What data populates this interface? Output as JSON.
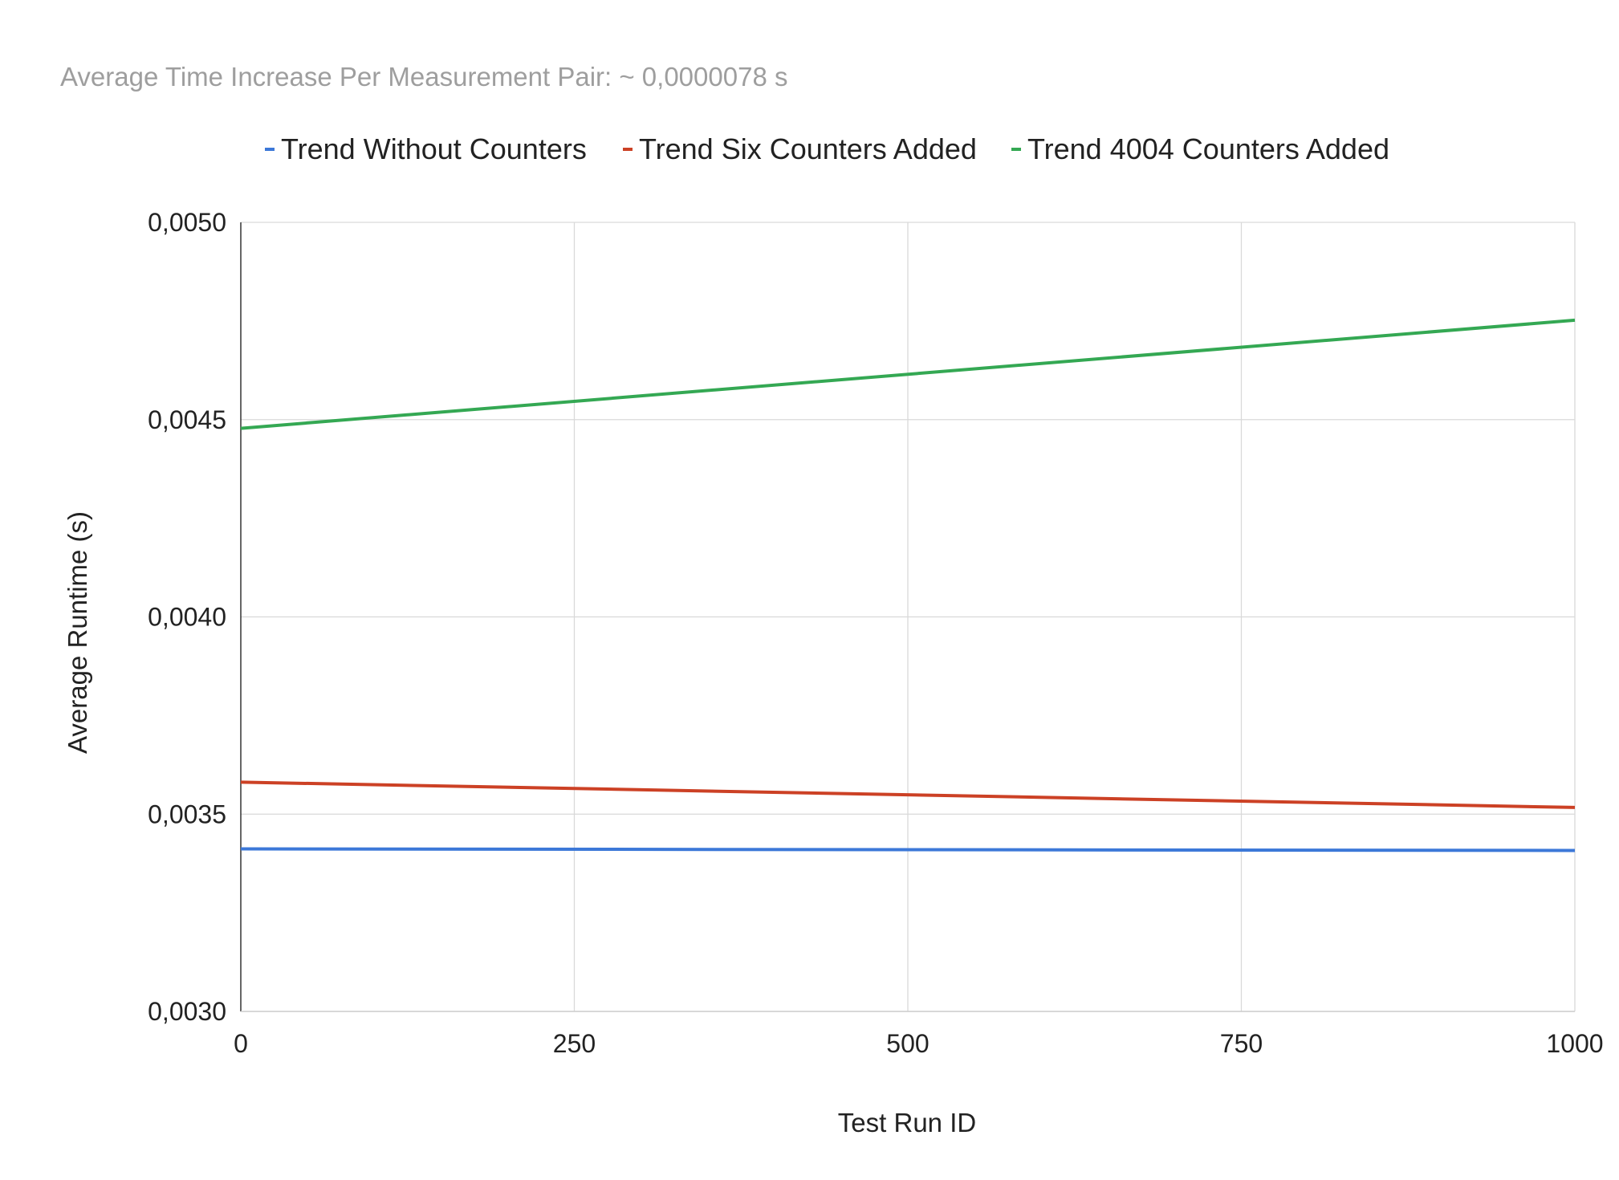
{
  "chart_data": {
    "type": "line",
    "title": "Average Time Increase Per Measurement Pair:  ~ 0,0000078 s",
    "xlabel": "Test Run ID",
    "ylabel": "Average Runtime (s)",
    "xlim": [
      0,
      1000
    ],
    "ylim": [
      0.003,
      0.005
    ],
    "x_ticks": [
      0,
      250,
      500,
      750,
      1000
    ],
    "x_tick_labels": [
      "0",
      "250",
      "500",
      "750",
      "1000"
    ],
    "y_ticks": [
      0.003,
      0.0035,
      0.004,
      0.0045,
      0.005
    ],
    "y_tick_labels": [
      "0,0030",
      "0,0035",
      "0,0040",
      "0,0045",
      "0,0050"
    ],
    "grid": true,
    "legend_position": "top",
    "series": [
      {
        "name": "Trend Without Counters",
        "color": "#3c78d8",
        "x": [
          0,
          1000
        ],
        "y": [
          0.003412,
          0.003408
        ]
      },
      {
        "name": "Trend Six Counters Added",
        "color": "#cc4125",
        "x": [
          0,
          1000
        ],
        "y": [
          0.003581,
          0.003517
        ]
      },
      {
        "name": "Trend 4004 Counters Added",
        "color": "#34a853",
        "x": [
          0,
          1000
        ],
        "y": [
          0.004478,
          0.004752
        ]
      }
    ]
  }
}
